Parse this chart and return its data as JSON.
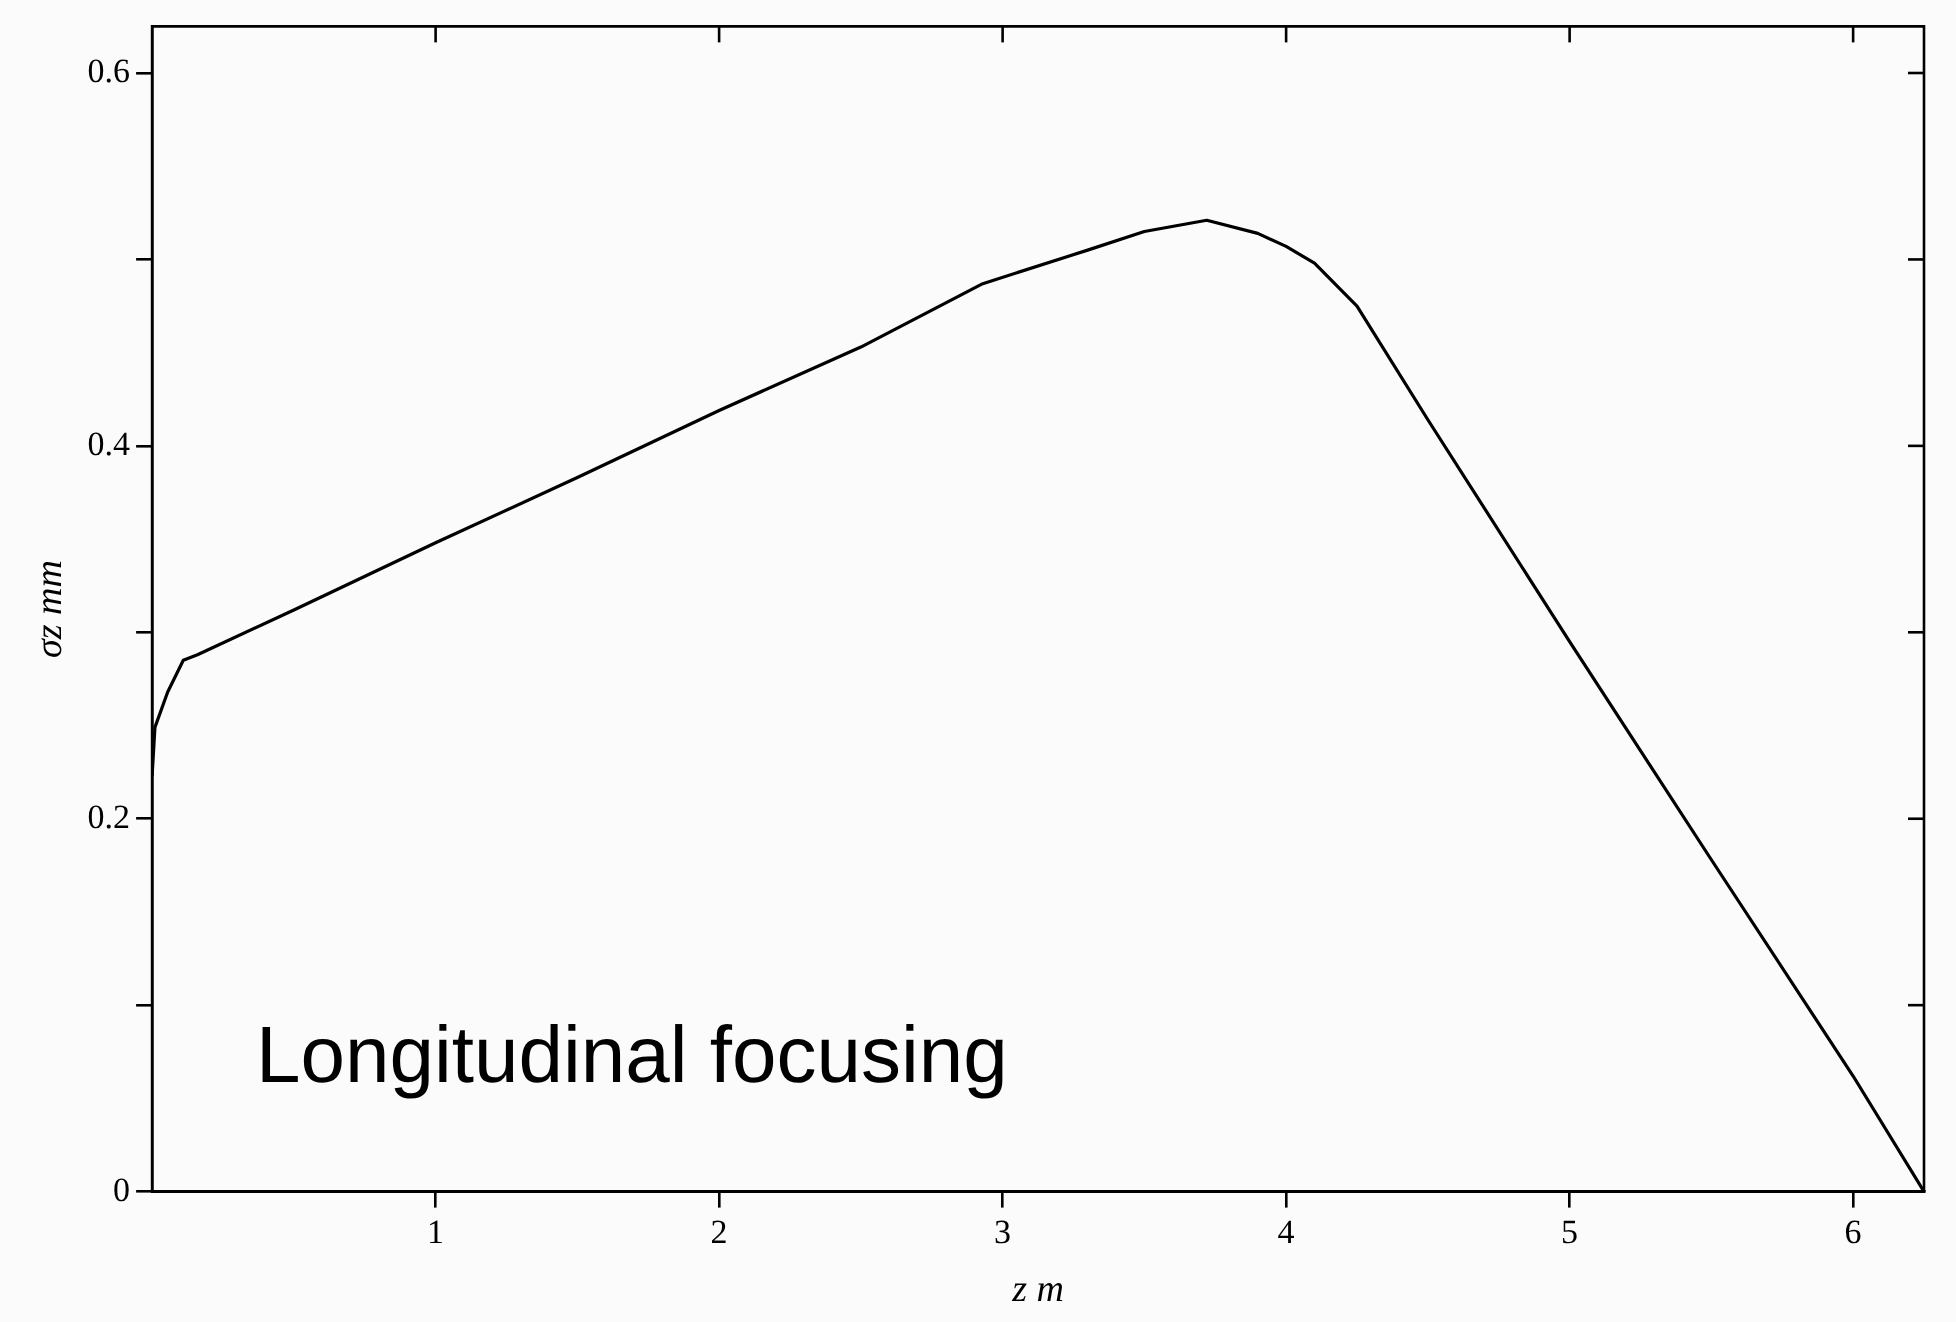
{
  "chart_data": {
    "type": "line",
    "xlabel": "z m",
    "ylabel": "σz mm",
    "annotations": [
      "Longitudinal focusing"
    ],
    "xlim": [
      0,
      6.25
    ],
    "xticks": [
      1,
      2,
      3,
      4,
      5,
      6
    ],
    "ylim": [
      0,
      0.625
    ],
    "yticks": [
      0,
      {
        "value": 0.1,
        "label": null
      },
      0.2,
      {
        "value": 0.3,
        "label": null
      },
      0.4,
      {
        "value": 0.5,
        "label": null
      },
      0.6
    ],
    "grid": false,
    "legend": false,
    "marker": "none",
    "line_style": "solid",
    "series": [
      {
        "color": "#000000",
        "x": [
          0,
          0.01,
          0.055,
          0.11,
          0.16,
          0.5,
          1,
          1.5,
          2,
          2.5,
          2.93,
          3.3,
          3.5,
          3.72,
          3.9,
          4,
          4.1,
          4.25,
          4.5,
          5,
          5.5,
          6,
          6.25
        ],
        "values": [
          0.223,
          0.249,
          0.268,
          0.285,
          0.288,
          0.312,
          0.348,
          0.383,
          0.419,
          0.453,
          0.487,
          0.505,
          0.515,
          0.521,
          0.514,
          0.507,
          0.498,
          0.475,
          0.414,
          0.295,
          0.178,
          0.062,
          0
        ]
      }
    ]
  }
}
